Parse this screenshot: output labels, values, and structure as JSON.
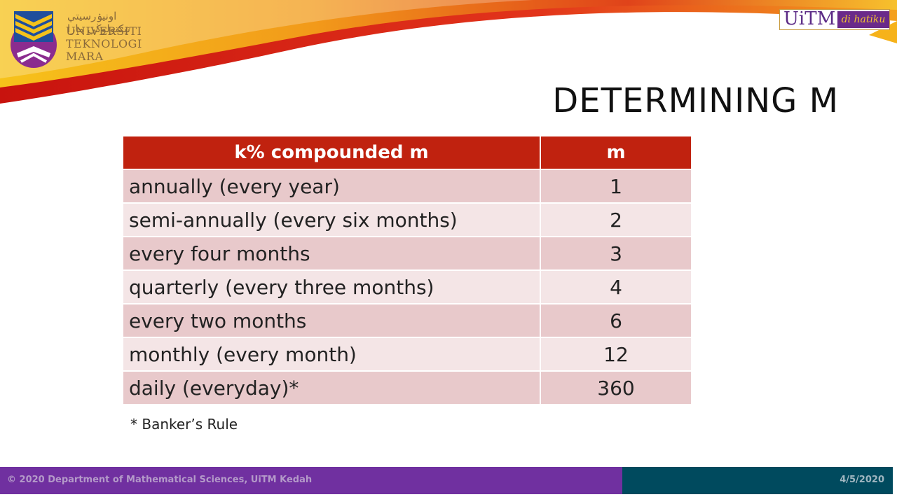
{
  "brand": {
    "jawi": "اونيۏرسيتي تيكنولوڬي مارا",
    "name_lines": [
      "UNIVERSITI",
      "TEKNOLOGI",
      "MARA"
    ],
    "tagline_main": "UiTM",
    "tagline_sub": "di hatiku"
  },
  "slide": {
    "title": "DETERMINING M",
    "table": {
      "headers": [
        "k% compounded  m",
        "m"
      ],
      "rows": [
        {
          "label": "annually (every year)",
          "m": "1"
        },
        {
          "label": "semi-annually (every six months)",
          "m": "2"
        },
        {
          "label": "every four months",
          "m": "3"
        },
        {
          "label": "quarterly (every three months)",
          "m": "4"
        },
        {
          "label": "every two months",
          "m": "6"
        },
        {
          "label": "monthly (every month)",
          "m": "12"
        },
        {
          "label": "daily (everyday)*",
          "m": "360"
        }
      ]
    },
    "note": "* Banker’s Rule"
  },
  "footer": {
    "copyright": "© 2020 Department of Mathematical Sciences, UiTM Kedah",
    "date": "4/5/2020"
  },
  "colors": {
    "header_red": "#c0220f",
    "row_dark": "#e8c9cb",
    "row_light": "#f4e5e6",
    "footer_purple": "#7030a0",
    "footer_teal": "#004a5e"
  }
}
